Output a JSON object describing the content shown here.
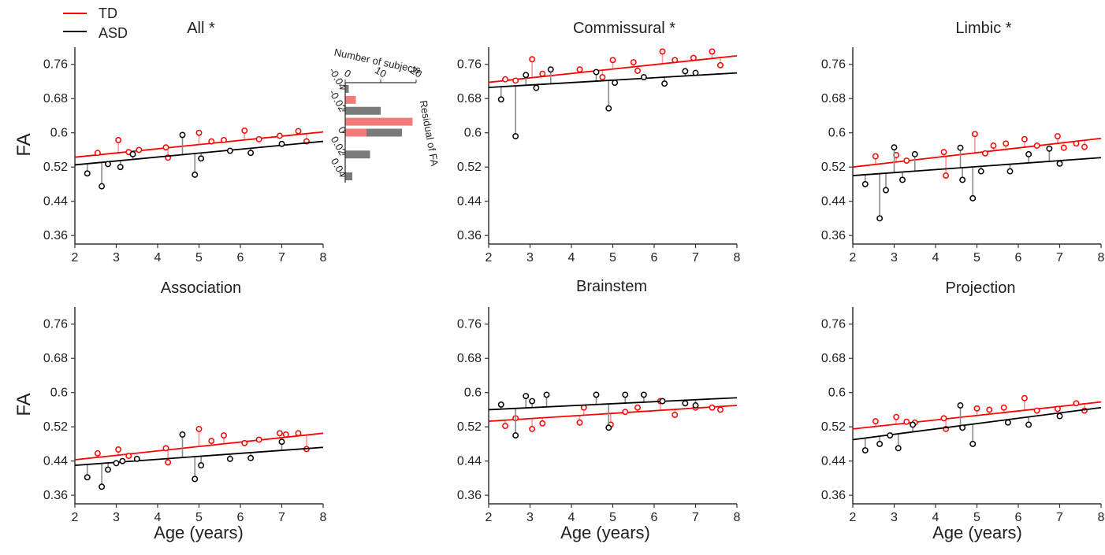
{
  "legend": {
    "td": {
      "label": "TD",
      "color": "#ff0000"
    },
    "asd": {
      "label": "ASD",
      "color": "#000000"
    }
  },
  "shared_axes": {
    "xlabel": "Age (years)",
    "ylabel": "FA",
    "xlim": [
      2,
      8
    ],
    "xticks": [
      "2",
      "3",
      "4",
      "5",
      "6",
      "7",
      "8"
    ],
    "ylim": [
      0.34,
      0.8
    ],
    "yticks": [
      "0.36",
      "0.44",
      "0.52",
      "0.6",
      "0.68",
      "0.76"
    ]
  },
  "chart_data": [
    {
      "type": "scatter",
      "title": "All *",
      "series": [
        {
          "name": "TD",
          "color": "#ff0000",
          "fit": [
            [
              2,
              0.543
            ],
            [
              8,
              0.602
            ]
          ],
          "points": [
            [
              2.55,
              0.553
            ],
            [
              3.05,
              0.583
            ],
            [
              3.3,
              0.555
            ],
            [
              3.55,
              0.56
            ],
            [
              4.2,
              0.566
            ],
            [
              4.25,
              0.542
            ],
            [
              5.0,
              0.6
            ],
            [
              5.3,
              0.58
            ],
            [
              5.6,
              0.583
            ],
            [
              6.1,
              0.605
            ],
            [
              6.45,
              0.585
            ],
            [
              6.95,
              0.593
            ],
            [
              7.4,
              0.604
            ],
            [
              7.6,
              0.58
            ]
          ]
        },
        {
          "name": "ASD",
          "color": "#000000",
          "fit": [
            [
              2,
              0.525
            ],
            [
              8,
              0.58
            ]
          ],
          "points": [
            [
              2.3,
              0.505
            ],
            [
              2.65,
              0.475
            ],
            [
              2.8,
              0.527
            ],
            [
              3.1,
              0.52
            ],
            [
              3.4,
              0.55
            ],
            [
              4.6,
              0.595
            ],
            [
              4.9,
              0.502
            ],
            [
              5.05,
              0.54
            ],
            [
              5.75,
              0.558
            ],
            [
              6.25,
              0.553
            ],
            [
              7.0,
              0.574
            ]
          ]
        }
      ],
      "inset": {
        "type": "bar",
        "xlabel": "Number of subjects",
        "xticks": [
          "0",
          "10",
          "20"
        ],
        "ylabel": "Residual of FA",
        "yticks": [
          "-0.04",
          "-0.02",
          "0",
          "0.02",
          "0.04"
        ],
        "bins": [
          -0.04,
          -0.03,
          -0.02,
          -0.01,
          0.0,
          0.01,
          0.02,
          0.03,
          0.04
        ],
        "td_counts": [
          0,
          3,
          0,
          19,
          6,
          0,
          0,
          0,
          0
        ],
        "asd_counts": [
          1,
          0,
          10,
          0,
          16,
          0,
          7,
          0,
          2
        ]
      }
    },
    {
      "type": "scatter",
      "title": "Commissural  *",
      "series": [
        {
          "name": "TD",
          "color": "#ff0000",
          "fit": [
            [
              2,
              0.718
            ],
            [
              8,
              0.78
            ]
          ],
          "points": [
            [
              2.4,
              0.725
            ],
            [
              2.65,
              0.722
            ],
            [
              3.05,
              0.772
            ],
            [
              3.3,
              0.738
            ],
            [
              4.2,
              0.748
            ],
            [
              4.75,
              0.73
            ],
            [
              5.0,
              0.77
            ],
            [
              5.5,
              0.765
            ],
            [
              5.6,
              0.745
            ],
            [
              6.2,
              0.79
            ],
            [
              6.5,
              0.77
            ],
            [
              6.95,
              0.775
            ],
            [
              7.4,
              0.79
            ],
            [
              7.6,
              0.758
            ]
          ]
        },
        {
          "name": "ASD",
          "color": "#000000",
          "fit": [
            [
              2,
              0.706
            ],
            [
              8,
              0.74
            ]
          ],
          "points": [
            [
              2.3,
              0.678
            ],
            [
              2.65,
              0.592
            ],
            [
              2.9,
              0.735
            ],
            [
              3.15,
              0.705
            ],
            [
              3.5,
              0.748
            ],
            [
              4.6,
              0.742
            ],
            [
              4.9,
              0.657
            ],
            [
              5.05,
              0.717
            ],
            [
              5.75,
              0.73
            ],
            [
              6.25,
              0.715
            ],
            [
              6.75,
              0.744
            ],
            [
              7.0,
              0.74
            ]
          ]
        }
      ]
    },
    {
      "type": "scatter",
      "title": "Limbic *",
      "series": [
        {
          "name": "TD",
          "color": "#ff0000",
          "fit": [
            [
              2,
              0.52
            ],
            [
              8,
              0.587
            ]
          ],
          "points": [
            [
              2.55,
              0.545
            ],
            [
              3.05,
              0.548
            ],
            [
              3.3,
              0.535
            ],
            [
              4.2,
              0.555
            ],
            [
              4.25,
              0.5
            ],
            [
              4.95,
              0.597
            ],
            [
              5.2,
              0.552
            ],
            [
              5.4,
              0.57
            ],
            [
              5.7,
              0.575
            ],
            [
              6.15,
              0.585
            ],
            [
              6.45,
              0.57
            ],
            [
              6.95,
              0.592
            ],
            [
              7.1,
              0.565
            ],
            [
              7.4,
              0.575
            ],
            [
              7.6,
              0.567
            ]
          ]
        },
        {
          "name": "ASD",
          "color": "#000000",
          "fit": [
            [
              2,
              0.5
            ],
            [
              8,
              0.542
            ]
          ],
          "points": [
            [
              2.3,
              0.48
            ],
            [
              2.65,
              0.4
            ],
            [
              2.8,
              0.466
            ],
            [
              3.0,
              0.566
            ],
            [
              3.2,
              0.49
            ],
            [
              3.5,
              0.55
            ],
            [
              4.6,
              0.565
            ],
            [
              4.65,
              0.49
            ],
            [
              4.9,
              0.447
            ],
            [
              5.1,
              0.51
            ],
            [
              5.8,
              0.51
            ],
            [
              6.25,
              0.55
            ],
            [
              6.75,
              0.563
            ],
            [
              7.0,
              0.528
            ]
          ]
        }
      ]
    },
    {
      "type": "scatter",
      "title": "Association",
      "series": [
        {
          "name": "TD",
          "color": "#ff0000",
          "fit": [
            [
              2,
              0.443
            ],
            [
              8,
              0.505
            ]
          ],
          "points": [
            [
              2.55,
              0.458
            ],
            [
              3.05,
              0.467
            ],
            [
              3.3,
              0.452
            ],
            [
              4.2,
              0.47
            ],
            [
              4.25,
              0.437
            ],
            [
              5.0,
              0.515
            ],
            [
              5.3,
              0.487
            ],
            [
              5.6,
              0.5
            ],
            [
              6.1,
              0.482
            ],
            [
              6.45,
              0.49
            ],
            [
              6.95,
              0.505
            ],
            [
              7.1,
              0.502
            ],
            [
              7.4,
              0.505
            ],
            [
              7.6,
              0.468
            ]
          ]
        },
        {
          "name": "ASD",
          "color": "#000000",
          "fit": [
            [
              2,
              0.43
            ],
            [
              8,
              0.472
            ]
          ],
          "points": [
            [
              2.3,
              0.402
            ],
            [
              2.65,
              0.38
            ],
            [
              2.8,
              0.42
            ],
            [
              3.0,
              0.435
            ],
            [
              3.15,
              0.44
            ],
            [
              3.5,
              0.445
            ],
            [
              4.6,
              0.502
            ],
            [
              4.9,
              0.398
            ],
            [
              5.05,
              0.43
            ],
            [
              5.75,
              0.445
            ],
            [
              6.25,
              0.447
            ],
            [
              7.0,
              0.485
            ]
          ]
        }
      ]
    },
    {
      "type": "scatter",
      "title": "Brainstem",
      "series": [
        {
          "name": "TD",
          "color": "#ff0000",
          "fit": [
            [
              2,
              0.533
            ],
            [
              8,
              0.57
            ]
          ],
          "points": [
            [
              2.4,
              0.522
            ],
            [
              2.65,
              0.54
            ],
            [
              3.05,
              0.515
            ],
            [
              3.3,
              0.528
            ],
            [
              4.2,
              0.53
            ],
            [
              4.3,
              0.565
            ],
            [
              4.95,
              0.525
            ],
            [
              5.3,
              0.555
            ],
            [
              5.6,
              0.565
            ],
            [
              6.15,
              0.58
            ],
            [
              6.5,
              0.548
            ],
            [
              7.0,
              0.565
            ],
            [
              7.4,
              0.565
            ],
            [
              7.6,
              0.56
            ]
          ]
        },
        {
          "name": "ASD",
          "color": "#000000",
          "fit": [
            [
              2,
              0.56
            ],
            [
              8,
              0.588
            ]
          ],
          "points": [
            [
              2.3,
              0.572
            ],
            [
              2.65,
              0.5
            ],
            [
              2.9,
              0.592
            ],
            [
              3.05,
              0.58
            ],
            [
              3.4,
              0.595
            ],
            [
              4.6,
              0.595
            ],
            [
              4.9,
              0.518
            ],
            [
              5.3,
              0.595
            ],
            [
              5.75,
              0.595
            ],
            [
              6.2,
              0.58
            ],
            [
              6.75,
              0.575
            ],
            [
              7.0,
              0.57
            ]
          ]
        }
      ]
    },
    {
      "type": "scatter",
      "title": "Projection",
      "series": [
        {
          "name": "TD",
          "color": "#ff0000",
          "fit": [
            [
              2,
              0.515
            ],
            [
              8,
              0.578
            ]
          ],
          "points": [
            [
              2.55,
              0.533
            ],
            [
              3.05,
              0.543
            ],
            [
              3.3,
              0.532
            ],
            [
              3.5,
              0.53
            ],
            [
              4.2,
              0.54
            ],
            [
              4.25,
              0.515
            ],
            [
              5.0,
              0.563
            ],
            [
              5.3,
              0.56
            ],
            [
              5.65,
              0.565
            ],
            [
              6.15,
              0.587
            ],
            [
              6.45,
              0.558
            ],
            [
              6.95,
              0.562
            ],
            [
              7.4,
              0.575
            ],
            [
              7.6,
              0.558
            ]
          ]
        },
        {
          "name": "ASD",
          "color": "#000000",
          "fit": [
            [
              2,
              0.49
            ],
            [
              8,
              0.565
            ]
          ],
          "points": [
            [
              2.3,
              0.465
            ],
            [
              2.65,
              0.48
            ],
            [
              2.9,
              0.5
            ],
            [
              3.1,
              0.47
            ],
            [
              3.45,
              0.525
            ],
            [
              4.6,
              0.57
            ],
            [
              4.65,
              0.518
            ],
            [
              4.9,
              0.48
            ],
            [
              5.75,
              0.53
            ],
            [
              6.25,
              0.525
            ],
            [
              7.0,
              0.545
            ]
          ]
        }
      ]
    }
  ]
}
